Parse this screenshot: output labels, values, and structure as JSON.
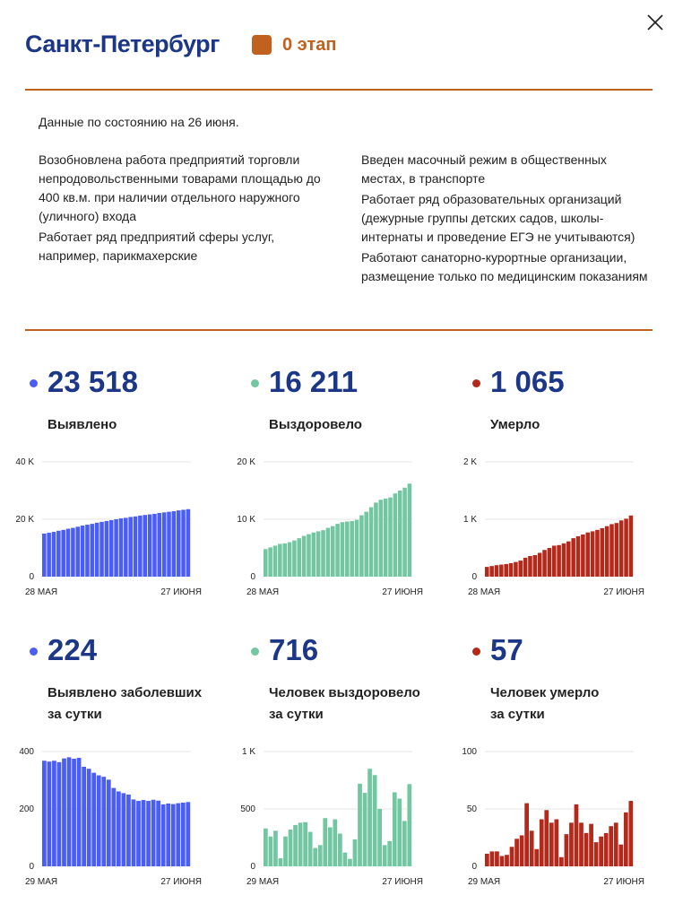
{
  "header": {
    "title": "Санкт-Петербург",
    "stage_label": "0 этап",
    "stage_color": "#c0611f",
    "close_icon": "close-x-icon"
  },
  "info": {
    "date_note": "Данные по состоянию на 26 июня.",
    "left": [
      "Возобновлена работа предприятий торговли непродовольственными товарами площадью до 400 кв.м. при наличии отдельного наружного (уличного) входа",
      "Работает ряд предприятий сферы услуг, например, парикмахерские"
    ],
    "right": [
      "Введен масочный режим в общественных местах, в транспорте",
      "Работает ряд образовательных организаций (дежурные группы детских садов, школы-интернаты и проведение ЕГЭ не учитываются)",
      "Работают санаторно-курортные организации, размещение только по медицинским показаниям"
    ]
  },
  "stats": [
    {
      "value": "23 518",
      "label": "Выявлено",
      "color": "#4a5ef5"
    },
    {
      "value": "16 211",
      "label": "Выздоровело",
      "color": "#72c6a2"
    },
    {
      "value": "1 065",
      "label": "Умерло",
      "color": "#b5291b"
    },
    {
      "value": "224",
      "label": "Выявлено заболевших",
      "label2": "за сутки",
      "color": "#4a5ef5"
    },
    {
      "value": "716",
      "label": "Человек выздоровело",
      "label2": "за сутки",
      "color": "#72c6a2"
    },
    {
      "value": "57",
      "label": "Человек умерло",
      "label2": "за сутки",
      "color": "#b5291b"
    }
  ],
  "chart_data": [
    {
      "type": "bar",
      "color": "#4a5ef5",
      "ylim": [
        0,
        40000
      ],
      "yticks": [
        "0",
        "20 K",
        "40 K"
      ],
      "x_start": "28 МАЯ",
      "x_end": "27 ИЮНЯ",
      "values": [
        15000,
        15300,
        15600,
        16000,
        16300,
        16700,
        17000,
        17400,
        17800,
        18100,
        18400,
        18800,
        19100,
        19400,
        19700,
        20000,
        20300,
        20500,
        20800,
        21000,
        21300,
        21500,
        21700,
        21900,
        22200,
        22400,
        22600,
        22800,
        23100,
        23300,
        23518
      ]
    },
    {
      "type": "bar",
      "color": "#72c6a2",
      "ylim": [
        0,
        20000
      ],
      "yticks": [
        "0",
        "10 K",
        "20 K"
      ],
      "x_start": "28 МАЯ",
      "x_end": "27 ИЮНЯ",
      "values": [
        4800,
        5100,
        5400,
        5700,
        5800,
        6000,
        6300,
        6700,
        7100,
        7400,
        7700,
        7900,
        8100,
        8500,
        8800,
        9200,
        9500,
        9600,
        9700,
        9900,
        10700,
        11300,
        12100,
        12900,
        13400,
        13600,
        13800,
        14500,
        15000,
        15500,
        16211
      ]
    },
    {
      "type": "bar",
      "color": "#b5291b",
      "ylim": [
        0,
        2000
      ],
      "yticks": [
        "0",
        "1 K",
        "2 K"
      ],
      "x_start": "28 МАЯ",
      "x_end": "27 ИЮНЯ",
      "values": [
        170,
        185,
        200,
        210,
        220,
        235,
        255,
        280,
        330,
        360,
        375,
        415,
        465,
        500,
        540,
        550,
        580,
        615,
        670,
        705,
        735,
        770,
        790,
        815,
        845,
        880,
        915,
        935,
        980,
        1010,
        1065
      ]
    },
    {
      "type": "bar",
      "color": "#4a5ef5",
      "ylim": [
        0,
        400
      ],
      "yticks": [
        "0",
        "200",
        "400"
      ],
      "x_start": "29 МАЯ",
      "x_end": "27 ИЮНЯ",
      "values": [
        368,
        365,
        368,
        363,
        376,
        380,
        375,
        378,
        347,
        340,
        326,
        317,
        312,
        302,
        273,
        261,
        255,
        250,
        233,
        228,
        231,
        228,
        232,
        229,
        216,
        219,
        217,
        220,
        222,
        224
      ]
    },
    {
      "type": "bar",
      "color": "#72c6a2",
      "ylim": [
        0,
        1000
      ],
      "yticks": [
        "0",
        "500",
        "1 K"
      ],
      "x_start": "29 МАЯ",
      "x_end": "27 ИЮНЯ",
      "values": [
        330,
        260,
        310,
        70,
        260,
        320,
        360,
        380,
        385,
        300,
        160,
        185,
        420,
        340,
        410,
        285,
        120,
        65,
        235,
        720,
        640,
        850,
        795,
        500,
        185,
        220,
        645,
        590,
        395,
        716
      ]
    },
    {
      "type": "bar",
      "color": "#b5291b",
      "ylim": [
        0,
        100
      ],
      "yticks": [
        "0",
        "50",
        "100"
      ],
      "x_start": "29 МАЯ",
      "x_end": "27 ИЮНЯ",
      "values": [
        11,
        13,
        13,
        9,
        10,
        17,
        24,
        27,
        55,
        31,
        15,
        41,
        49,
        38,
        41,
        8,
        28,
        38,
        54,
        38,
        29,
        37,
        21,
        26,
        29,
        35,
        38,
        19,
        47,
        57
      ]
    }
  ]
}
